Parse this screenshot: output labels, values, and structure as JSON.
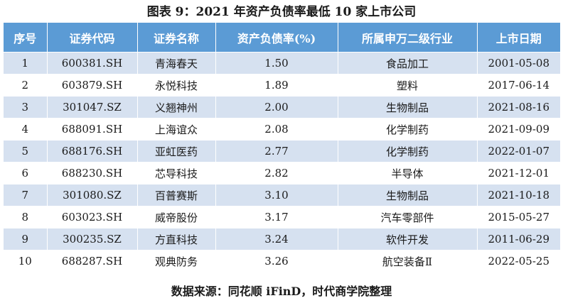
{
  "title": "图表 9：2021 年资产负债率最低 10 家上市公司",
  "columns": [
    "序号",
    "证券代码",
    "证券名称",
    "资产负债率(%)",
    "所属申万二级行业",
    "上市日期"
  ],
  "rows": [
    [
      "1",
      "600381.SH",
      "青海春天",
      "1.50",
      "食品加工",
      "2001-05-08"
    ],
    [
      "2",
      "603879.SH",
      "永悦科技",
      "1.89",
      "塑料",
      "2017-06-14"
    ],
    [
      "3",
      "301047.SZ",
      "义翘神州",
      "2.00",
      "生物制品",
      "2021-08-16"
    ],
    [
      "4",
      "688091.SH",
      "上海谊众",
      "2.08",
      "化学制药",
      "2021-09-09"
    ],
    [
      "5",
      "688176.SH",
      "亚虹医药",
      "2.77",
      "化学制药",
      "2022-01-07"
    ],
    [
      "6",
      "688230.SH",
      "芯导科技",
      "2.82",
      "半导体",
      "2021-12-01"
    ],
    [
      "7",
      "301080.SZ",
      "百普赛斯",
      "3.10",
      "生物制品",
      "2021-10-18"
    ],
    [
      "8",
      "603023.SH",
      "威帝股份",
      "3.17",
      "汽车零部件",
      "2015-05-27"
    ],
    [
      "9",
      "300235.SZ",
      "方直科技",
      "3.24",
      "软件开发",
      "2011-06-29"
    ],
    [
      "10",
      "688287.SH",
      "观典防务",
      "3.26",
      "航空装备Ⅱ",
      "2022-05-25"
    ]
  ],
  "source": "数据来源：同花顺 iFinD，时代商学院整理",
  "colors": {
    "header_bg": "#5b9bd5",
    "header_text": "#ffffff",
    "stripe_bg": "#d6e1f0"
  }
}
